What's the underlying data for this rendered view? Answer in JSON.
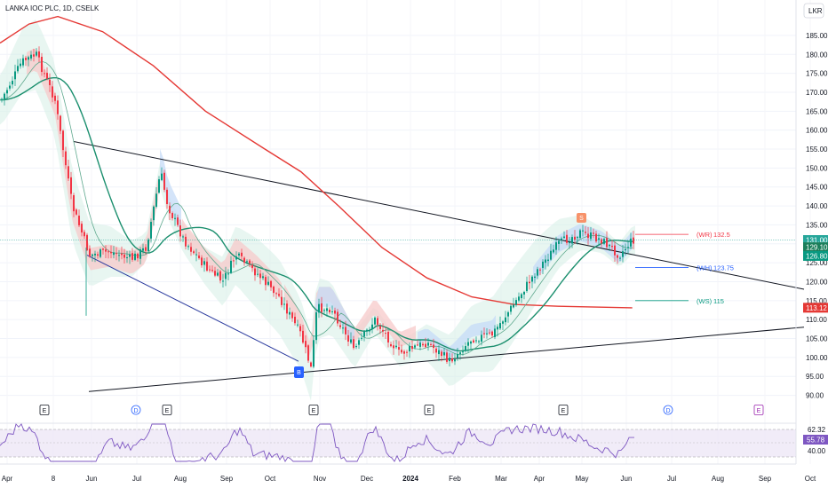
{
  "header": {
    "symbol": "LANKA IOC PLC, 1D, CSELK",
    "currency": "LKR"
  },
  "price_axis": {
    "ticks": [
      "185.00",
      "180.00",
      "175.00",
      "170.00",
      "165.00",
      "160.00",
      "155.00",
      "150.00",
      "145.00",
      "140.00",
      "135.00",
      "130.00",
      "125.00",
      "120.00",
      "115.00",
      "110.00",
      "105.00",
      "100.00",
      "95.00",
      "90.00"
    ]
  },
  "time_axis": {
    "labels": [
      "Apr",
      "8",
      "Jun",
      "Jul",
      "Aug",
      "Sep",
      "Oct",
      "Nov",
      "Dec",
      "2024",
      "Feb",
      "Mar",
      "Apr",
      "May",
      "Jun",
      "Jul",
      "Aug",
      "Sep",
      "Oct"
    ]
  },
  "price_tags": [
    {
      "value": "131.00",
      "color": "#26a69a"
    },
    {
      "value": "129.10",
      "color": "#1b7f5b"
    },
    {
      "value": "126.80",
      "color": "#089981"
    },
    {
      "value": "113.12",
      "color": "#e53935"
    }
  ],
  "levels": [
    {
      "label": "(WR)",
      "value": "132.5",
      "color": "#f23645"
    },
    {
      "label": "(WH)",
      "value": "123.75",
      "color": "#2962ff"
    },
    {
      "label": "(WS)",
      "value": "115",
      "color": "#089981"
    }
  ],
  "markers": {
    "sell": "S",
    "buy": "B"
  },
  "events": [
    "E",
    "D",
    "E",
    "E",
    "E",
    "E",
    "D",
    "E"
  ],
  "rsi": {
    "ticks": [
      "62.32",
      "40.00"
    ],
    "current": "55.78",
    "color": "#7e57c2"
  },
  "colors": {
    "up": "#089981",
    "down": "#f23645",
    "ma_long": "#e53935",
    "ma_mid": "#1b8f6e",
    "ma_fast": "#5fa98e",
    "trend_upper": "#131722",
    "trend_lower_left": "#2a3a9e",
    "cloud_red": "#f7c9c9",
    "cloud_blue": "#c6dbf7",
    "band": "#d6efe6"
  },
  "chart_data": {
    "type": "candlestick",
    "title": "LANKA IOC PLC, 1D, CSELK",
    "ylabel": "LKR",
    "ylim": [
      88,
      189
    ],
    "x_categories": [
      "Apr",
      "8",
      "Jun",
      "Jul",
      "Aug",
      "Sep",
      "Oct",
      "Nov",
      "Dec",
      "2024",
      "Feb",
      "Mar",
      "Apr",
      "May",
      "Jun",
      "Jul",
      "Aug",
      "Sep",
      "Oct"
    ],
    "close_path": [
      {
        "x": "2023-04-01",
        "y": 168
      },
      {
        "x": "2023-04-15",
        "y": 178
      },
      {
        "x": "2023-04-25",
        "y": 180
      },
      {
        "x": "2023-05-08",
        "y": 168
      },
      {
        "x": "2023-05-20",
        "y": 140
      },
      {
        "x": "2023-06-01",
        "y": 127
      },
      {
        "x": "2023-06-15",
        "y": 128
      },
      {
        "x": "2023-06-30",
        "y": 126
      },
      {
        "x": "2023-07-10",
        "y": 129
      },
      {
        "x": "2023-07-20",
        "y": 149
      },
      {
        "x": "2023-07-25",
        "y": 140
      },
      {
        "x": "2023-08-05",
        "y": 131
      },
      {
        "x": "2023-08-20",
        "y": 124
      },
      {
        "x": "2023-09-01",
        "y": 120
      },
      {
        "x": "2023-09-10",
        "y": 127
      },
      {
        "x": "2023-09-25",
        "y": 122
      },
      {
        "x": "2023-10-10",
        "y": 116
      },
      {
        "x": "2023-10-25",
        "y": 106
      },
      {
        "x": "2023-11-01",
        "y": 97
      },
      {
        "x": "2023-11-05",
        "y": 113
      },
      {
        "x": "2023-11-15",
        "y": 113
      },
      {
        "x": "2023-12-01",
        "y": 102
      },
      {
        "x": "2023-12-15",
        "y": 110
      },
      {
        "x": "2024-01-01",
        "y": 101
      },
      {
        "x": "2024-01-20",
        "y": 104
      },
      {
        "x": "2024-02-05",
        "y": 99
      },
      {
        "x": "2024-02-20",
        "y": 105
      },
      {
        "x": "2024-03-05",
        "y": 106
      },
      {
        "x": "2024-03-20",
        "y": 114
      },
      {
        "x": "2024-04-05",
        "y": 123
      },
      {
        "x": "2024-04-20",
        "y": 130
      },
      {
        "x": "2024-05-05",
        "y": 133
      },
      {
        "x": "2024-05-20",
        "y": 131
      },
      {
        "x": "2024-06-01",
        "y": 127
      },
      {
        "x": "2024-06-10",
        "y": 131
      }
    ],
    "last_close": 131.0,
    "moving_averages": [
      {
        "name": "",
        "color": "#e53935",
        "last": 113.12
      },
      {
        "name": "",
        "color": "#1b7f5b",
        "last": 129.1
      },
      {
        "name": "",
        "color": "#089981",
        "last": 126.8
      }
    ],
    "pivot_levels": {
      "WR": 132.5,
      "WH": 123.75,
      "WS": 115
    },
    "rsi": {
      "last": 55.78,
      "upper": 62.32,
      "lower": 40.0
    }
  }
}
